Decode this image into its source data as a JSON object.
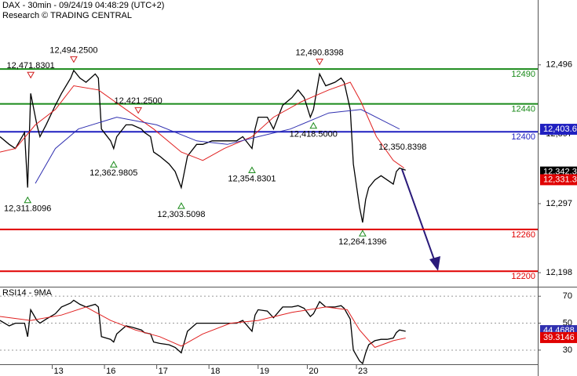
{
  "chart_data": [
    {
      "type": "line",
      "title": "DAX - 30min - 09/24/19 04:48:29 (UTC+2)",
      "subtitle": "Research © TRADING CENTRAL",
      "xlim": [
        0,
        175
      ],
      "ylim": [
        12179,
        12589
      ],
      "yticks": [
        {
          "value": 12496,
          "label": "12,496"
        },
        {
          "value": 12397,
          "label": "12,397"
        },
        {
          "value": 12297,
          "label": "12,297"
        },
        {
          "value": 12198,
          "label": "12,198"
        }
      ],
      "series": [
        {
          "color": "#000000",
          "x": [
            0,
            3,
            5,
            8,
            9,
            10,
            12,
            13,
            15,
            18,
            20,
            23,
            24,
            26,
            28,
            31,
            32,
            33,
            36,
            37,
            38,
            41,
            43,
            46,
            47,
            49,
            50,
            52,
            55,
            57,
            59,
            61,
            64,
            66,
            69,
            72,
            74,
            77,
            79,
            82,
            83,
            84,
            87,
            89,
            92,
            95,
            97,
            99,
            101,
            102,
            104,
            106,
            109,
            111,
            112,
            114,
            115,
            117,
            118,
            119,
            120,
            122,
            124,
            126,
            128,
            129,
            130,
            132
          ],
          "values": [
            12393,
            12382,
            12376,
            12399,
            12320,
            12455,
            12410,
            12393,
            12410,
            12438,
            12455,
            12477,
            12488,
            12477,
            12471,
            12483,
            12477,
            12404,
            12387,
            12376,
            12393,
            12410,
            12410,
            12404,
            12399,
            12393,
            12371,
            12365,
            12354,
            12343,
            12320,
            12365,
            12382,
            12382,
            12387,
            12387,
            12387,
            12387,
            12393,
            12376,
            12404,
            12421,
            12421,
            12404,
            12438,
            12449,
            12460,
            12449,
            12421,
            12432,
            12483,
            12466,
            12471,
            12477,
            12471,
            12432,
            12354,
            12292,
            12270,
            12303,
            12320,
            12331,
            12337,
            12331,
            12325,
            12343,
            12348,
            12345
          ]
        },
        {
          "color": "#e02020",
          "x": [
            0,
            5,
            11.5,
            18,
            24,
            32,
            41,
            50,
            59,
            66,
            73,
            82,
            89,
            98,
            107,
            114,
            117.5,
            122.5,
            128,
            131.5
          ],
          "values": [
            12371,
            12376,
            12410,
            12432,
            12466,
            12460,
            12432,
            12404,
            12371,
            12359,
            12376,
            12393,
            12421,
            12443,
            12460,
            12471,
            12443,
            12393,
            12359,
            12348
          ]
        },
        {
          "color": "#3030b0",
          "x": [
            11.5,
            18,
            25.5,
            38,
            51,
            64,
            74,
            84,
            94.5,
            107,
            117.5,
            130
          ],
          "values": [
            12326,
            12376,
            12404,
            12421,
            12410,
            12387,
            12382,
            12393,
            12404,
            12427,
            12432,
            12404
          ]
        }
      ],
      "levels": [
        {
          "value": 12490,
          "color": "#1a8a1a"
        },
        {
          "value": 12440,
          "color": "#1a8a1a"
        },
        {
          "value": 12400,
          "color": "#2020c0"
        },
        {
          "value": 12260,
          "color": "#e00000"
        },
        {
          "value": 12200,
          "color": "#e00000"
        }
      ],
      "price_tags": [
        {
          "value": 12403.6,
          "label": "12,403.6",
          "color": "#2020c0"
        },
        {
          "value": 12342.3,
          "label": "12,342.3",
          "color": "#000000"
        },
        {
          "value": 12331.3,
          "label": "12,331.3",
          "color": "#e00000"
        }
      ],
      "annotations": [
        {
          "x": 10,
          "value": 12471.8301,
          "label": "12,471.8301",
          "kind": "high"
        },
        {
          "x": 24,
          "value": 12494.25,
          "label": "12,494.2500",
          "kind": "high"
        },
        {
          "x": 45,
          "value": 12421.25,
          "label": "12,421.2500",
          "kind": "high"
        },
        {
          "x": 104,
          "value": 12490.8398,
          "label": "12,490.8398",
          "kind": "high"
        },
        {
          "x": 131,
          "value": 12350.8398,
          "label": "12,350.8398",
          "kind": "text"
        },
        {
          "x": 9,
          "value": 12311.8096,
          "label": "12,311.8096",
          "kind": "low"
        },
        {
          "x": 37,
          "value": 12362.9805,
          "label": "12,362.9805",
          "kind": "low"
        },
        {
          "x": 59,
          "value": 12303.5098,
          "label": "12,303.5098",
          "kind": "low"
        },
        {
          "x": 82,
          "value": 12354.8301,
          "label": "12,354.8301",
          "kind": "low"
        },
        {
          "x": 102,
          "value": 12418.5,
          "label": "12,418.5000",
          "kind": "low"
        },
        {
          "x": 118,
          "value": 12264.1396,
          "label": "12,264.1396",
          "kind": "low"
        }
      ]
    },
    {
      "type": "line",
      "title": "RSI14 - 9MA",
      "xlim": [
        0,
        175
      ],
      "ylim": [
        19.5,
        76.5
      ],
      "yticks": [
        70,
        50,
        30
      ],
      "xticks": [
        {
          "value": 17,
          "label": "13"
        },
        {
          "value": 34,
          "label": "16"
        },
        {
          "value": 51,
          "label": "17"
        },
        {
          "value": 68,
          "label": "18"
        },
        {
          "value": 84,
          "label": "19"
        },
        {
          "value": 100,
          "label": "20"
        },
        {
          "value": 116,
          "label": "23"
        }
      ],
      "series": [
        {
          "color": "#000000",
          "x": [
            0,
            3,
            5,
            8,
            9,
            10,
            12,
            13,
            15,
            18,
            20,
            23,
            24,
            26,
            28,
            31,
            32,
            33,
            36,
            37,
            38,
            41,
            43,
            46,
            47,
            49,
            50,
            52,
            55,
            57,
            59,
            61,
            64,
            66,
            69,
            72,
            74,
            77,
            79,
            82,
            83,
            84,
            87,
            89,
            92,
            95,
            97,
            99,
            101,
            102,
            104,
            106,
            109,
            111,
            112,
            114,
            115,
            117,
            118,
            119,
            120,
            122,
            124,
            126,
            128,
            129,
            130,
            132
          ],
          "values": [
            52,
            48,
            50,
            50,
            40,
            60,
            52,
            50,
            53,
            57,
            62,
            65,
            67,
            64,
            62,
            64,
            62,
            40,
            38,
            36,
            42,
            48,
            47,
            45,
            43,
            42,
            36,
            35,
            34,
            32,
            28,
            44,
            50,
            50,
            50,
            50,
            50,
            50,
            52,
            44,
            56,
            60,
            59,
            54,
            62,
            62,
            63,
            61,
            55,
            57,
            66,
            62,
            62,
            63,
            61,
            53,
            30,
            22,
            20,
            28,
            34,
            37,
            38,
            38,
            39,
            43,
            45,
            44
          ]
        },
        {
          "color": "#e02020",
          "x": [
            0,
            10,
            20,
            28,
            36,
            44,
            52,
            59,
            66,
            75,
            84,
            95,
            106,
            113,
            117,
            122,
            128,
            132
          ],
          "values": [
            55,
            52,
            56,
            62,
            52,
            45,
            40,
            33,
            42,
            50,
            52,
            58,
            62,
            60,
            45,
            32,
            37,
            39
          ]
        }
      ],
      "price_tags": [
        {
          "value": 44.4688,
          "label": "44.4688",
          "color": "#3030b0"
        },
        {
          "value": 39.3146,
          "label": "39.3146",
          "color": "#e00000"
        }
      ]
    }
  ]
}
